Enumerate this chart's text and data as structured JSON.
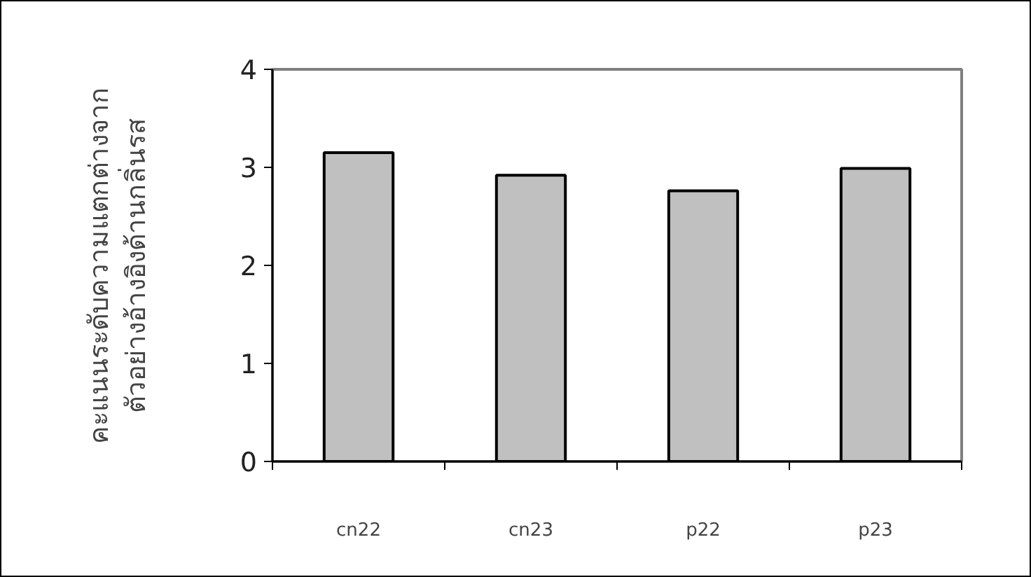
{
  "chart_data": {
    "type": "bar",
    "ylabel": "คะแนนระดับความแตกต่างจาก\nตัวอย่างอ้างอิงด้านกลิ่นรส",
    "categories": [
      "cn22",
      "cn23",
      "p22",
      "p23"
    ],
    "values": [
      3.15,
      2.92,
      2.76,
      2.99
    ],
    "color": "#c0c0c0",
    "ylim": [
      0,
      4
    ],
    "yticks": [
      0,
      1,
      2,
      3,
      4
    ],
    "grid": false
  }
}
